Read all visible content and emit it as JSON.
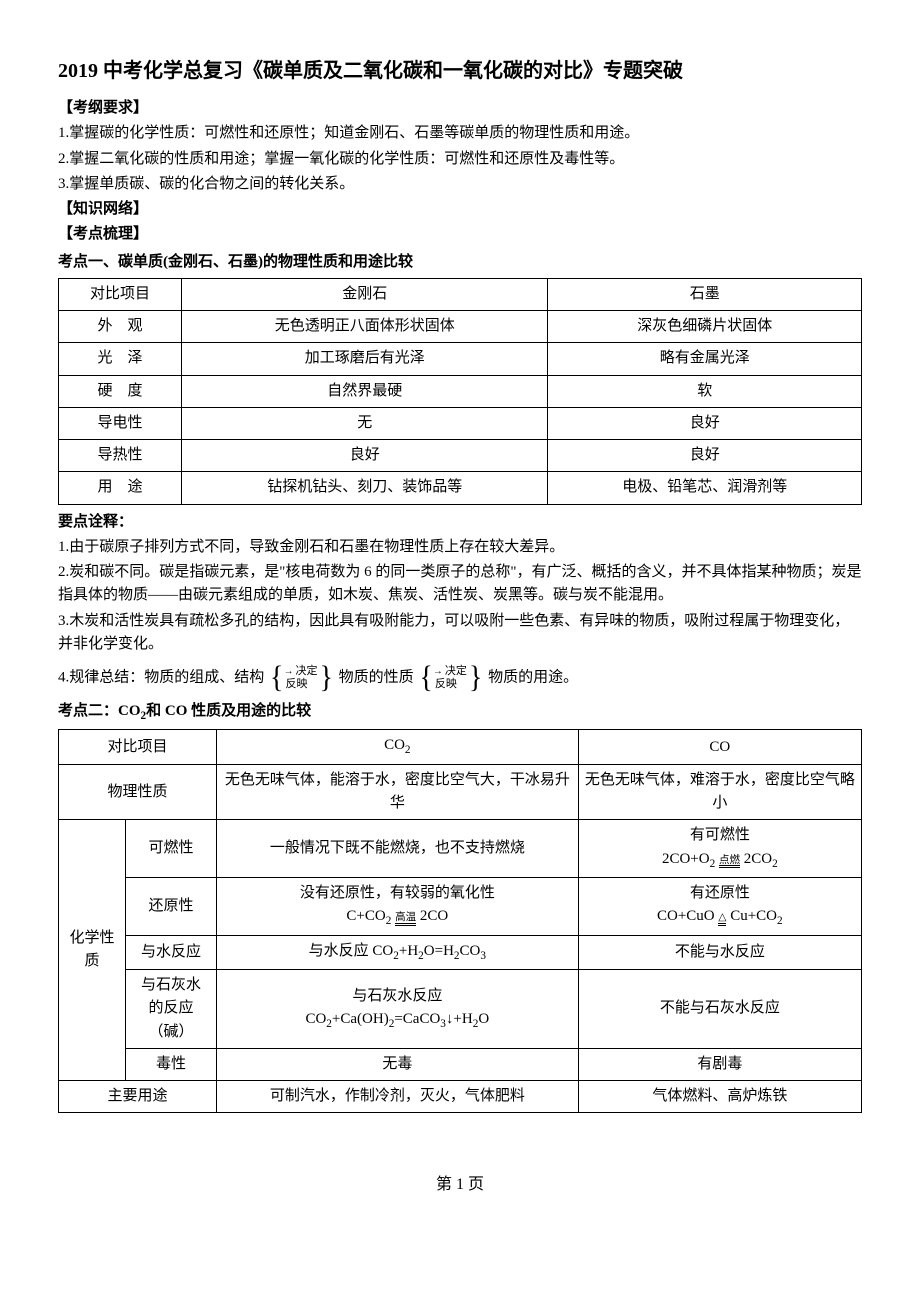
{
  "title": "2019 中考化学总复习《碳单质及二氧化碳和一氧化碳的对比》专题突破",
  "sec1": {
    "head": "【考纲要求】",
    "items": [
      "1.掌握碳的化学性质：可燃性和还原性；知道金刚石、石墨等碳单质的物理性质和用途。",
      "2.掌握二氧化碳的性质和用途；掌握一氧化碳的化学性质：可燃性和还原性及毒性等。",
      "3.掌握单质碳、碳的化合物之间的转化关系。"
    ]
  },
  "sec2": "【知识网络】",
  "sec3": "【考点梳理】",
  "kpt1": "考点一、碳单质(金刚石、石墨)的物理性质和用途比较",
  "table1": {
    "cols": [
      "对比项目",
      "金刚石",
      "石墨"
    ],
    "rows": [
      [
        "外　观",
        "无色透明正八面体形状固体",
        "深灰色细磷片状固体"
      ],
      [
        "光　泽",
        "加工琢磨后有光泽",
        "略有金属光泽"
      ],
      [
        "硬　度",
        "自然界最硬",
        "软"
      ],
      [
        "导电性",
        "无",
        "良好"
      ],
      [
        "导热性",
        "良好",
        "良好"
      ],
      [
        "用　途",
        "钻探机钻头、刻刀、装饰品等",
        "电极、铅笔芯、润滑剂等"
      ]
    ]
  },
  "yd1head": "要点诠释：",
  "yd1": [
    "1.由于碳原子排列方式不同，导致金刚石和石墨在物理性质上存在较大差异。",
    "2.炭和碳不同。碳是指碳元素，是\"核电荷数为 6 的同一类原子的总称\"，有广泛、概括的含义，并不具体指某种物质；炭是指具体的物质——由碳元素组成的单质，如木炭、焦炭、活性炭、炭黑等。碳与炭不能混用。",
    "3.木炭和活性炭具有疏松多孔的结构，因此具有吸附能力，可以吸附一些色素、有异味的物质，吸附过程属于物理变化，并非化学变化。"
  ],
  "rule4_a": "4.规律总结：物质的组成、结构",
  "rule4_b": "物质的性质",
  "rule4_c": "物质的用途。",
  "rule4_top": "决定",
  "rule4_bot": "反映",
  "kpt2_a": "考点二：CO",
  "kpt2_b": "和 CO 性质及用途的比较",
  "table2": {
    "r0": [
      "对比项目",
      "CO₂",
      "CO"
    ],
    "r1": [
      "物理性质",
      "无色无味气体，能溶于水，密度比空气大，干冰易升华",
      "无色无味气体，难溶于水，密度比空气略小"
    ],
    "chem_label": "化学性质",
    "r2": {
      "label": "可燃性",
      "co2": "一般情况下既不能燃烧，也不支持燃烧",
      "co_a": "有可燃性",
      "co_b_l": "2CO+O",
      "co_b_cond": "点燃",
      "co_b_r": "2CO"
    },
    "r3": {
      "label": "还原性",
      "co2_a": "没有还原性，有较弱的氧化性",
      "co2_b_l": "C+CO",
      "co2_b_cond": "高温",
      "co2_b_r": "2CO",
      "co_a": "有还原性",
      "co_b_l": "CO+CuO",
      "co_b_cond": "△",
      "co_b_r": "Cu+CO"
    },
    "r4": {
      "label": "与水反应",
      "co2_a": "与水反应 CO",
      "co2_b": "+H",
      "co2_c": "O=H",
      "co2_d": "CO",
      "co": "不能与水反应"
    },
    "r5": {
      "label_a": "与石灰水",
      "label_b": "的反应",
      "label_c": "（碱）",
      "co2_a": "与石灰水反应",
      "co2_b_l": "CO",
      "co2_b_m": "+Ca(OH)",
      "co2_b_n": "=CaCO",
      "co2_b_o": "↓+H",
      "co2_b_p": "O",
      "co": "不能与石灰水反应"
    },
    "r6": [
      "毒性",
      "无毒",
      "有剧毒"
    ],
    "r7": [
      "主要用途",
      "可制汽水，作制冷剂，灭火，气体肥料",
      "气体燃料、高炉炼铁"
    ]
  },
  "footer": "第 1 页"
}
